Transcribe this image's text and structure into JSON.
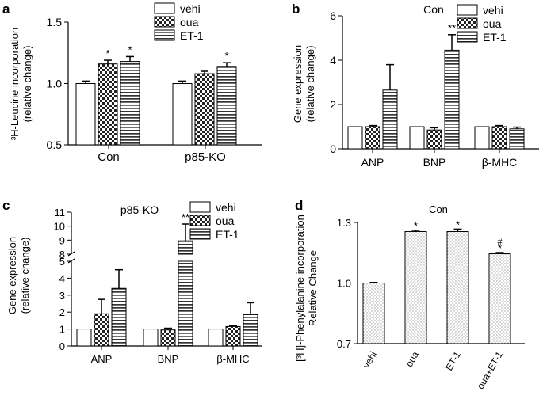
{
  "patterns": {
    "vehi": "white",
    "oua": "checker",
    "ET-1": "stripes",
    "dots": "dots"
  },
  "chart_data": [
    {
      "panel": "a",
      "type": "bar",
      "title": "",
      "ylabel_lines": [
        "³H-Leucine incorporation",
        "(relative change)"
      ],
      "ylim": [
        0.5,
        1.5
      ],
      "yticks": [
        "0.5",
        "1.0",
        "1.5"
      ],
      "yticks_values": [
        0.5,
        1.0,
        1.5
      ],
      "categories": [
        "Con",
        "p85-KO"
      ],
      "series": [
        {
          "name": "vehi",
          "values": [
            1.0,
            1.0
          ],
          "errors": [
            0.02,
            0.02
          ],
          "sig": [
            "",
            ""
          ]
        },
        {
          "name": "oua",
          "values": [
            1.16,
            1.08
          ],
          "errors": [
            0.03,
            0.02
          ],
          "sig": [
            "*",
            ""
          ]
        },
        {
          "name": "ET-1",
          "values": [
            1.18,
            1.14
          ],
          "errors": [
            0.04,
            0.03
          ],
          "sig": [
            "*",
            "*"
          ]
        }
      ]
    },
    {
      "panel": "b",
      "type": "bar",
      "title": "Con",
      "ylabel_lines": [
        "Gene expression",
        "(relative change)"
      ],
      "ylim": [
        0,
        6
      ],
      "yticks": [
        "0",
        "2",
        "4",
        "6"
      ],
      "yticks_values": [
        0,
        2,
        4,
        6
      ],
      "categories": [
        "ANP",
        "BNP",
        "β-MHC"
      ],
      "series": [
        {
          "name": "vehi",
          "values": [
            1.0,
            1.0,
            1.0
          ],
          "errors": [
            0,
            0,
            0
          ],
          "sig": [
            "",
            "",
            ""
          ]
        },
        {
          "name": "oua",
          "values": [
            1.0,
            0.85,
            1.0
          ],
          "errors": [
            0.05,
            0.1,
            0.05
          ],
          "sig": [
            "",
            "",
            ""
          ]
        },
        {
          "name": "ET-1",
          "values": [
            2.65,
            4.45,
            0.9
          ],
          "errors": [
            1.15,
            0.7,
            0.08
          ],
          "sig": [
            "",
            "**",
            ""
          ]
        }
      ]
    },
    {
      "panel": "c",
      "type": "bar",
      "title": "p85-KO",
      "ylabel_lines": [
        "Gene expression",
        "(relative change)"
      ],
      "axis_break": true,
      "ylim": [
        0,
        11
      ],
      "yticks": [
        "0",
        "1",
        "2",
        "3",
        "4",
        "5",
        "8",
        "9",
        "10",
        "11"
      ],
      "yticks_values": [
        0,
        1,
        2,
        3,
        4,
        5,
        8,
        9,
        10,
        11
      ],
      "categories": [
        "ANP",
        "BNP",
        "β-MHC"
      ],
      "series": [
        {
          "name": "vehi",
          "values": [
            1.0,
            1.0,
            1.0
          ],
          "errors": [
            0,
            0,
            0
          ],
          "sig": [
            "",
            "",
            ""
          ]
        },
        {
          "name": "oua",
          "values": [
            1.9,
            0.95,
            1.15
          ],
          "errors": [
            0.85,
            0.1,
            0.05
          ],
          "sig": [
            "",
            "",
            ""
          ]
        },
        {
          "name": "ET-1",
          "values": [
            3.4,
            8.95,
            1.85
          ],
          "errors": [
            1.1,
            1.2,
            0.7
          ],
          "sig": [
            "",
            "**",
            ""
          ]
        }
      ]
    },
    {
      "panel": "d",
      "type": "bar",
      "title": "Con",
      "ylabel_lines": [
        "[³H]-Phenylalanine incorporation",
        "Relative Change"
      ],
      "ylim": [
        0.7,
        1.3
      ],
      "yticks": [
        "0.7",
        "1.0",
        "1.3"
      ],
      "yticks_values": [
        0.7,
        1.0,
        1.3
      ],
      "categories": [
        "vehi",
        "oua",
        "ET-1",
        "oua+ET-1"
      ],
      "values": [
        1.0,
        1.255,
        1.255,
        1.145
      ],
      "errors": [
        0.003,
        0.006,
        0.012,
        0.006
      ],
      "sig": [
        "",
        "*",
        "*",
        "*"
      ],
      "sig2": [
        "",
        "",
        "",
        "#"
      ]
    }
  ]
}
